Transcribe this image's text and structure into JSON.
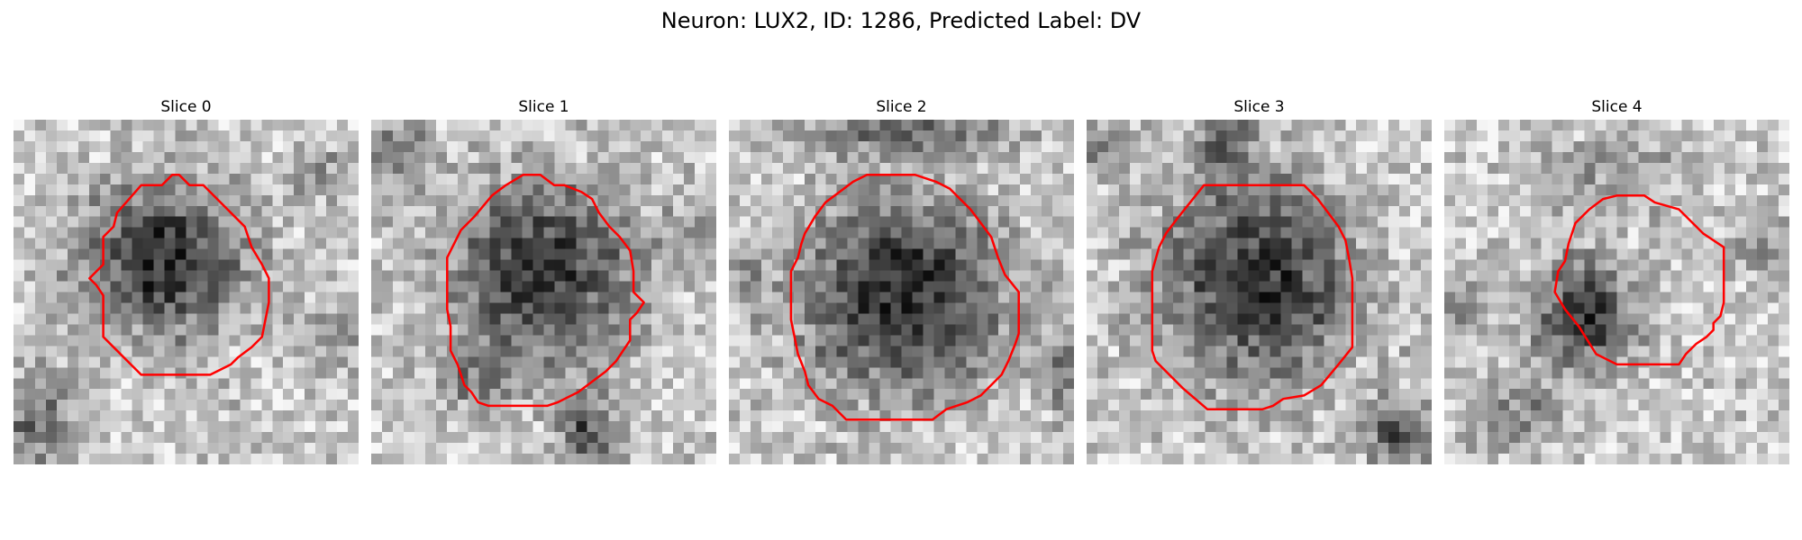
{
  "figure": {
    "title": "Neuron: LUX2, ID: 1286, Predicted Label: DV"
  },
  "colors": {
    "contour": "#ff0000",
    "background": "#ffffff"
  },
  "panels": [
    {
      "title": "Slice 0"
    },
    {
      "title": "Slice 1"
    },
    {
      "title": "Slice 2"
    },
    {
      "title": "Slice 3"
    },
    {
      "title": "Slice 4"
    }
  ]
}
